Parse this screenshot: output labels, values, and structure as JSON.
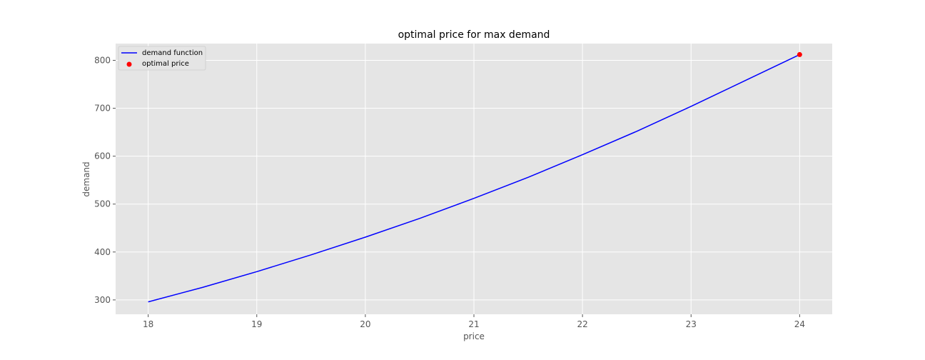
{
  "chart_data": {
    "type": "line",
    "title": "optimal price for max demand",
    "xlabel": "price",
    "ylabel": "demand",
    "xlim": [
      17.7,
      24.3
    ],
    "ylim": [
      270,
      835
    ],
    "xticks": [
      18,
      19,
      20,
      21,
      22,
      23,
      24
    ],
    "yticks": [
      300,
      400,
      500,
      600,
      700,
      800
    ],
    "grid": true,
    "legend_position": "top-left",
    "series": [
      {
        "name": "demand function",
        "kind": "line",
        "color": "#0000ff",
        "x": [
          18,
          18.5,
          19,
          19.5,
          20,
          20.5,
          21,
          21.5,
          22,
          22.5,
          23,
          23.5,
          24
        ],
        "y": [
          296,
          326,
          359,
          394,
          431,
          470,
          512,
          556,
          603,
          652,
          704,
          758,
          812
        ]
      },
      {
        "name": "optimal price",
        "kind": "scatter",
        "color": "#ff0000",
        "x": [
          24
        ],
        "y": [
          812
        ]
      }
    ]
  }
}
